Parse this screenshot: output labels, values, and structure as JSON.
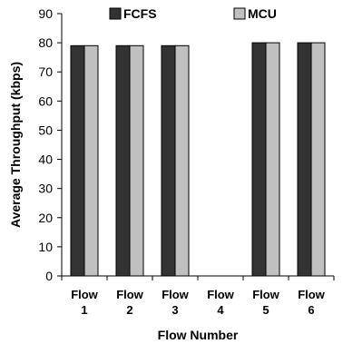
{
  "chart_data": {
    "type": "bar",
    "categories": [
      [
        "Flow",
        "1"
      ],
      [
        "Flow",
        "2"
      ],
      [
        "Flow",
        "3"
      ],
      [
        "Flow",
        "4"
      ],
      [
        "Flow",
        "5"
      ],
      [
        "Flow",
        "6"
      ]
    ],
    "series": [
      {
        "name": "FCFS",
        "color": "#333333",
        "values": [
          79,
          79,
          79,
          0,
          80,
          80
        ]
      },
      {
        "name": "MCU",
        "color": "#c0c0c0",
        "values": [
          79,
          79,
          79,
          0,
          80,
          80
        ]
      }
    ],
    "xlabel": "Flow Number",
    "ylabel": "Average Throughput (kbps)",
    "ylim": [
      0,
      90
    ],
    "yticks": [
      0,
      10,
      20,
      30,
      40,
      50,
      60,
      70,
      80,
      90
    ],
    "grid": false,
    "legend_position": "top"
  }
}
